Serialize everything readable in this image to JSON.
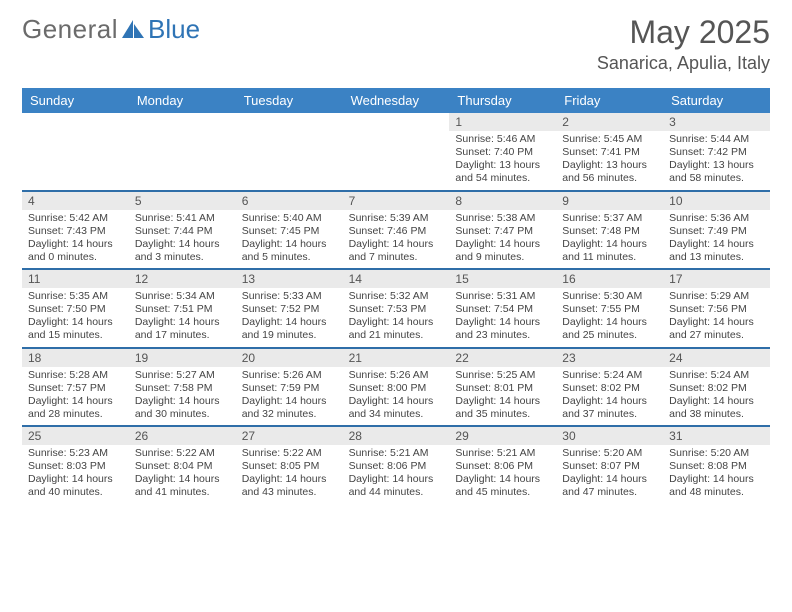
{
  "logo": {
    "general": "General",
    "blue": "Blue"
  },
  "title": {
    "month": "May 2025",
    "location": "Sanarica, Apulia, Italy"
  },
  "colors": {
    "header_blue": "#3b82c4",
    "divider_blue": "#2f6ea8",
    "daynum_bg": "#eaeaea",
    "logo_blue": "#2f74b5",
    "logo_grey": "#6b6b6b"
  },
  "dow": [
    "Sunday",
    "Monday",
    "Tuesday",
    "Wednesday",
    "Thursday",
    "Friday",
    "Saturday"
  ],
  "first_weekday_index": 4,
  "days": [
    {
      "n": 1,
      "sunrise": "5:46 AM",
      "sunset": "7:40 PM",
      "daylight": "13 hours and 54 minutes."
    },
    {
      "n": 2,
      "sunrise": "5:45 AM",
      "sunset": "7:41 PM",
      "daylight": "13 hours and 56 minutes."
    },
    {
      "n": 3,
      "sunrise": "5:44 AM",
      "sunset": "7:42 PM",
      "daylight": "13 hours and 58 minutes."
    },
    {
      "n": 4,
      "sunrise": "5:42 AM",
      "sunset": "7:43 PM",
      "daylight": "14 hours and 0 minutes."
    },
    {
      "n": 5,
      "sunrise": "5:41 AM",
      "sunset": "7:44 PM",
      "daylight": "14 hours and 3 minutes."
    },
    {
      "n": 6,
      "sunrise": "5:40 AM",
      "sunset": "7:45 PM",
      "daylight": "14 hours and 5 minutes."
    },
    {
      "n": 7,
      "sunrise": "5:39 AM",
      "sunset": "7:46 PM",
      "daylight": "14 hours and 7 minutes."
    },
    {
      "n": 8,
      "sunrise": "5:38 AM",
      "sunset": "7:47 PM",
      "daylight": "14 hours and 9 minutes."
    },
    {
      "n": 9,
      "sunrise": "5:37 AM",
      "sunset": "7:48 PM",
      "daylight": "14 hours and 11 minutes."
    },
    {
      "n": 10,
      "sunrise": "5:36 AM",
      "sunset": "7:49 PM",
      "daylight": "14 hours and 13 minutes."
    },
    {
      "n": 11,
      "sunrise": "5:35 AM",
      "sunset": "7:50 PM",
      "daylight": "14 hours and 15 minutes."
    },
    {
      "n": 12,
      "sunrise": "5:34 AM",
      "sunset": "7:51 PM",
      "daylight": "14 hours and 17 minutes."
    },
    {
      "n": 13,
      "sunrise": "5:33 AM",
      "sunset": "7:52 PM",
      "daylight": "14 hours and 19 minutes."
    },
    {
      "n": 14,
      "sunrise": "5:32 AM",
      "sunset": "7:53 PM",
      "daylight": "14 hours and 21 minutes."
    },
    {
      "n": 15,
      "sunrise": "5:31 AM",
      "sunset": "7:54 PM",
      "daylight": "14 hours and 23 minutes."
    },
    {
      "n": 16,
      "sunrise": "5:30 AM",
      "sunset": "7:55 PM",
      "daylight": "14 hours and 25 minutes."
    },
    {
      "n": 17,
      "sunrise": "5:29 AM",
      "sunset": "7:56 PM",
      "daylight": "14 hours and 27 minutes."
    },
    {
      "n": 18,
      "sunrise": "5:28 AM",
      "sunset": "7:57 PM",
      "daylight": "14 hours and 28 minutes."
    },
    {
      "n": 19,
      "sunrise": "5:27 AM",
      "sunset": "7:58 PM",
      "daylight": "14 hours and 30 minutes."
    },
    {
      "n": 20,
      "sunrise": "5:26 AM",
      "sunset": "7:59 PM",
      "daylight": "14 hours and 32 minutes."
    },
    {
      "n": 21,
      "sunrise": "5:26 AM",
      "sunset": "8:00 PM",
      "daylight": "14 hours and 34 minutes."
    },
    {
      "n": 22,
      "sunrise": "5:25 AM",
      "sunset": "8:01 PM",
      "daylight": "14 hours and 35 minutes."
    },
    {
      "n": 23,
      "sunrise": "5:24 AM",
      "sunset": "8:02 PM",
      "daylight": "14 hours and 37 minutes."
    },
    {
      "n": 24,
      "sunrise": "5:24 AM",
      "sunset": "8:02 PM",
      "daylight": "14 hours and 38 minutes."
    },
    {
      "n": 25,
      "sunrise": "5:23 AM",
      "sunset": "8:03 PM",
      "daylight": "14 hours and 40 minutes."
    },
    {
      "n": 26,
      "sunrise": "5:22 AM",
      "sunset": "8:04 PM",
      "daylight": "14 hours and 41 minutes."
    },
    {
      "n": 27,
      "sunrise": "5:22 AM",
      "sunset": "8:05 PM",
      "daylight": "14 hours and 43 minutes."
    },
    {
      "n": 28,
      "sunrise": "5:21 AM",
      "sunset": "8:06 PM",
      "daylight": "14 hours and 44 minutes."
    },
    {
      "n": 29,
      "sunrise": "5:21 AM",
      "sunset": "8:06 PM",
      "daylight": "14 hours and 45 minutes."
    },
    {
      "n": 30,
      "sunrise": "5:20 AM",
      "sunset": "8:07 PM",
      "daylight": "14 hours and 47 minutes."
    },
    {
      "n": 31,
      "sunrise": "5:20 AM",
      "sunset": "8:08 PM",
      "daylight": "14 hours and 48 minutes."
    }
  ],
  "labels": {
    "sunrise": "Sunrise: ",
    "sunset": "Sunset: ",
    "daylight": "Daylight: "
  }
}
